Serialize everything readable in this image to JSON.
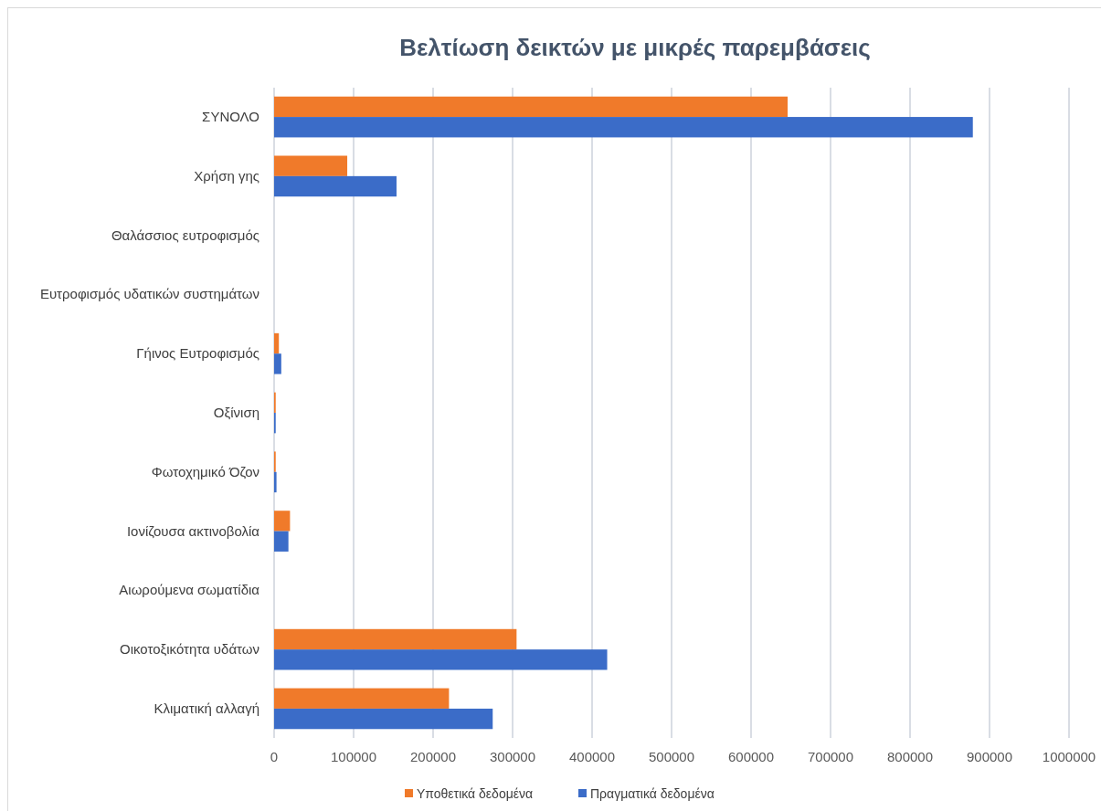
{
  "chart_data": {
    "type": "bar",
    "orientation": "horizontal",
    "title": "Βελτίωση δεικτών με μικρές παρεμβάσεις",
    "categories": [
      "ΣΥΝΟΛΟ",
      "Χρήση γης",
      "Θαλάσσιος ευτροφισμός",
      "Ευτροφισμός υδατικών συστημάτων",
      "Γήινος Ευτροφισμός",
      "Οξίνιση",
      "Φωτοχημικό Όζον",
      "Ιονίζουσα ακτινοβολία",
      "Αιωρούμενα σωματίδια",
      "Οικοτοξικότητα υδάτων",
      "Κλιματική αλλαγή"
    ],
    "series": [
      {
        "name": "Υποθετικά δεδομένα",
        "color": "#f07a2a",
        "values": [
          646000,
          92000,
          0,
          0,
          6000,
          2000,
          2000,
          20000,
          0,
          305000,
          220000
        ]
      },
      {
        "name": "Πραγματικά δεδομένα",
        "color": "#3b6cc8",
        "values": [
          879000,
          154000,
          0,
          0,
          9000,
          2000,
          3000,
          18000,
          0,
          419000,
          275000
        ]
      }
    ],
    "xlim": [
      0,
      1000000
    ],
    "xticks": [
      0,
      100000,
      200000,
      300000,
      400000,
      500000,
      600000,
      700000,
      800000,
      900000,
      1000000
    ],
    "grid": "x",
    "legend": "bottom"
  }
}
